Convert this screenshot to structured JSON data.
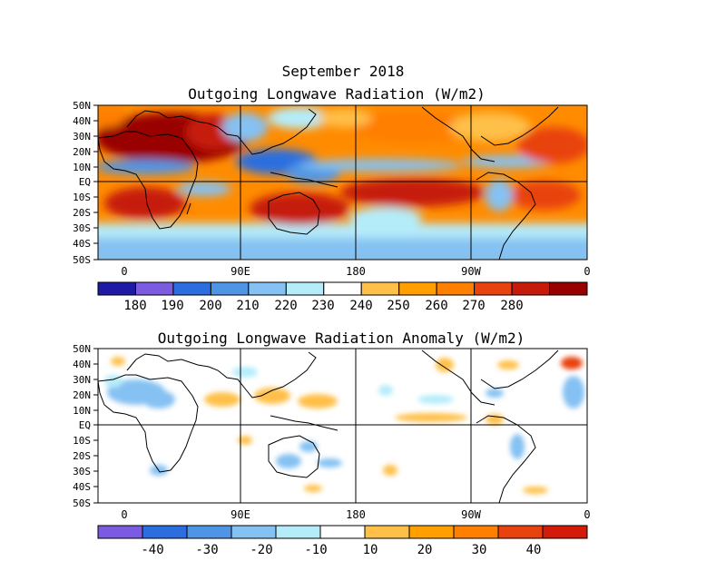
{
  "figure": {
    "date_title": "September 2018"
  },
  "panels": [
    {
      "id": "olr",
      "title": "Outgoing Longwave Radiation (W/m2)",
      "lat_labels": [
        "50N",
        "40N",
        "30N",
        "20N",
        "10N",
        "EQ",
        "10S",
        "20S",
        "30S",
        "40S",
        "50S"
      ],
      "lon_labels": [
        "0",
        "90E",
        "180",
        "90W",
        "0"
      ],
      "colorbar": {
        "colors": [
          "#1f1aa6",
          "#7b5ce0",
          "#2c6ee0",
          "#4f95e6",
          "#85c1f2",
          "#b5ecfa",
          "#ffffff",
          "#ffc04a",
          "#ff9f00",
          "#ff7f00",
          "#e8420f",
          "#c61a0a",
          "#990000"
        ],
        "tick_labels": [
          "180",
          "190",
          "200",
          "210",
          "220",
          "230",
          "240",
          "250",
          "260",
          "270",
          "280"
        ],
        "units": "W/m2"
      }
    },
    {
      "id": "anom",
      "title": "Outgoing Longwave Radiation Anomaly (W/m2)",
      "lat_labels": [
        "50N",
        "40N",
        "30N",
        "20N",
        "10N",
        "EQ",
        "10S",
        "20S",
        "30S",
        "40S",
        "50S"
      ],
      "lon_labels": [
        "0",
        "90E",
        "180",
        "90W",
        "0"
      ],
      "colorbar": {
        "colors": [
          "#7b5ce0",
          "#2c6ee0",
          "#4f95e6",
          "#85c1f2",
          "#b5ecfa",
          "#ffffff",
          "#ffc04a",
          "#ff9f00",
          "#ff7f00",
          "#e8420f",
          "#d41b0a"
        ],
        "tick_labels": [
          "-40",
          "-30",
          "-20",
          "-10",
          "10",
          "20",
          "30",
          "40"
        ],
        "units": "W/m2"
      }
    }
  ]
}
